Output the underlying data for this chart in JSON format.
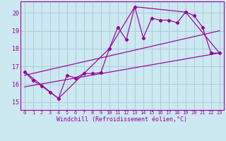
{
  "bg_color": "#cce8f0",
  "grid_color": "#aaccdd",
  "line_color": "#990099",
  "xlabel": "Windchill (Refroidissement éolien,°C)",
  "x_ticks": [
    0,
    1,
    2,
    3,
    4,
    5,
    6,
    7,
    8,
    9,
    10,
    11,
    12,
    13,
    14,
    15,
    16,
    17,
    18,
    19,
    20,
    21,
    22,
    23
  ],
  "y_ticks": [
    15,
    16,
    17,
    18,
    19,
    20
  ],
  "ylim": [
    14.55,
    20.65
  ],
  "xlim": [
    -0.5,
    23.5
  ],
  "main_y": [
    16.7,
    16.2,
    15.9,
    15.55,
    15.2,
    16.5,
    16.35,
    16.6,
    16.6,
    16.65,
    18.0,
    19.2,
    18.5,
    20.35,
    18.6,
    19.7,
    19.6,
    19.6,
    19.45,
    20.05,
    19.85,
    19.2,
    17.75,
    17.75
  ],
  "line2_x": [
    0,
    4,
    10,
    13,
    19,
    23
  ],
  "line2_y": [
    16.7,
    15.2,
    18.0,
    20.35,
    20.05,
    17.75
  ],
  "line3_x": [
    0,
    23
  ],
  "line3_y": [
    16.5,
    19.0
  ],
  "line4_x": [
    0,
    23
  ],
  "line4_y": [
    15.85,
    17.75
  ]
}
